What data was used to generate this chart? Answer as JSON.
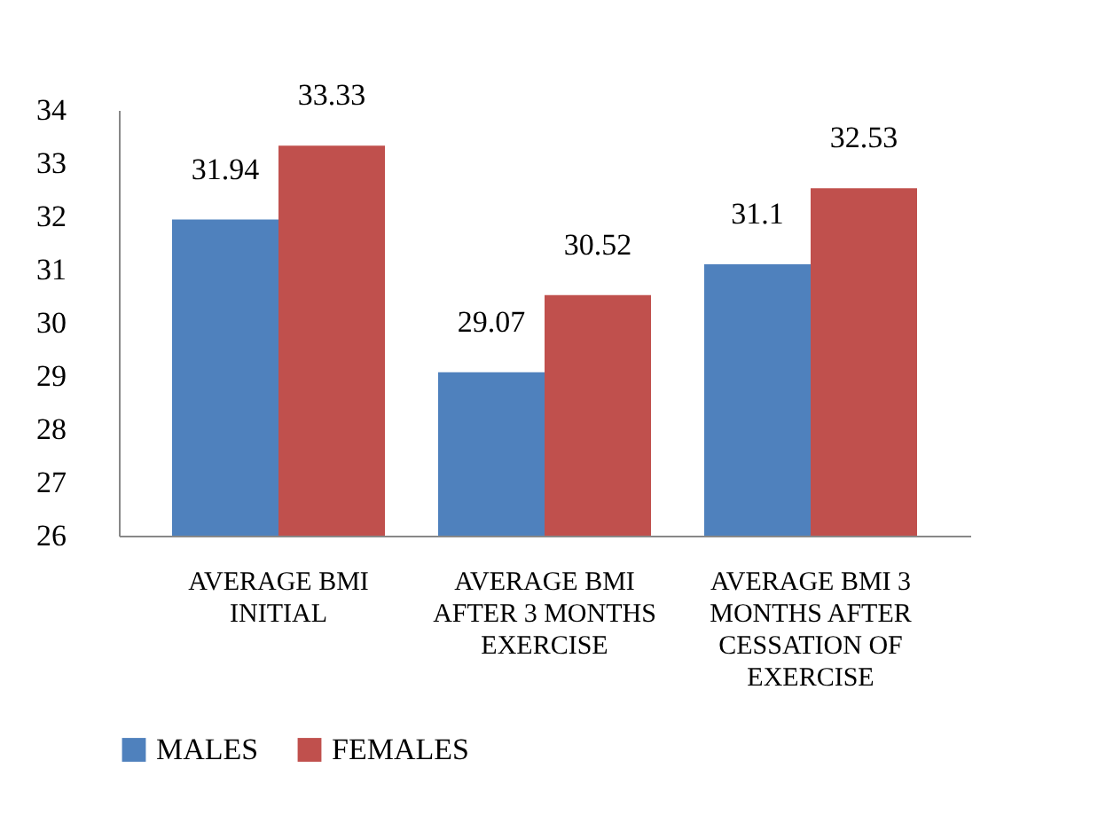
{
  "chart_data": {
    "type": "bar",
    "categories": [
      "AVERAGE BMI INITIAL",
      "AVERAGE BMI AFTER 3 MONTHS EXERCISE",
      "AVERAGE BMI 3 MONTHS AFTER CESSATION OF EXERCISE"
    ],
    "series": [
      {
        "name": "MALES",
        "color": "#4f81bd",
        "values": [
          31.94,
          29.07,
          31.1
        ]
      },
      {
        "name": "FEMALES",
        "color": "#c0504d",
        "values": [
          33.33,
          30.52,
          32.53
        ]
      }
    ],
    "ylim": [
      26,
      34
    ],
    "yticks": [
      26,
      27,
      28,
      29,
      30,
      31,
      32,
      33,
      34
    ],
    "data_labels": true,
    "grid": false,
    "legend": "bottom"
  }
}
